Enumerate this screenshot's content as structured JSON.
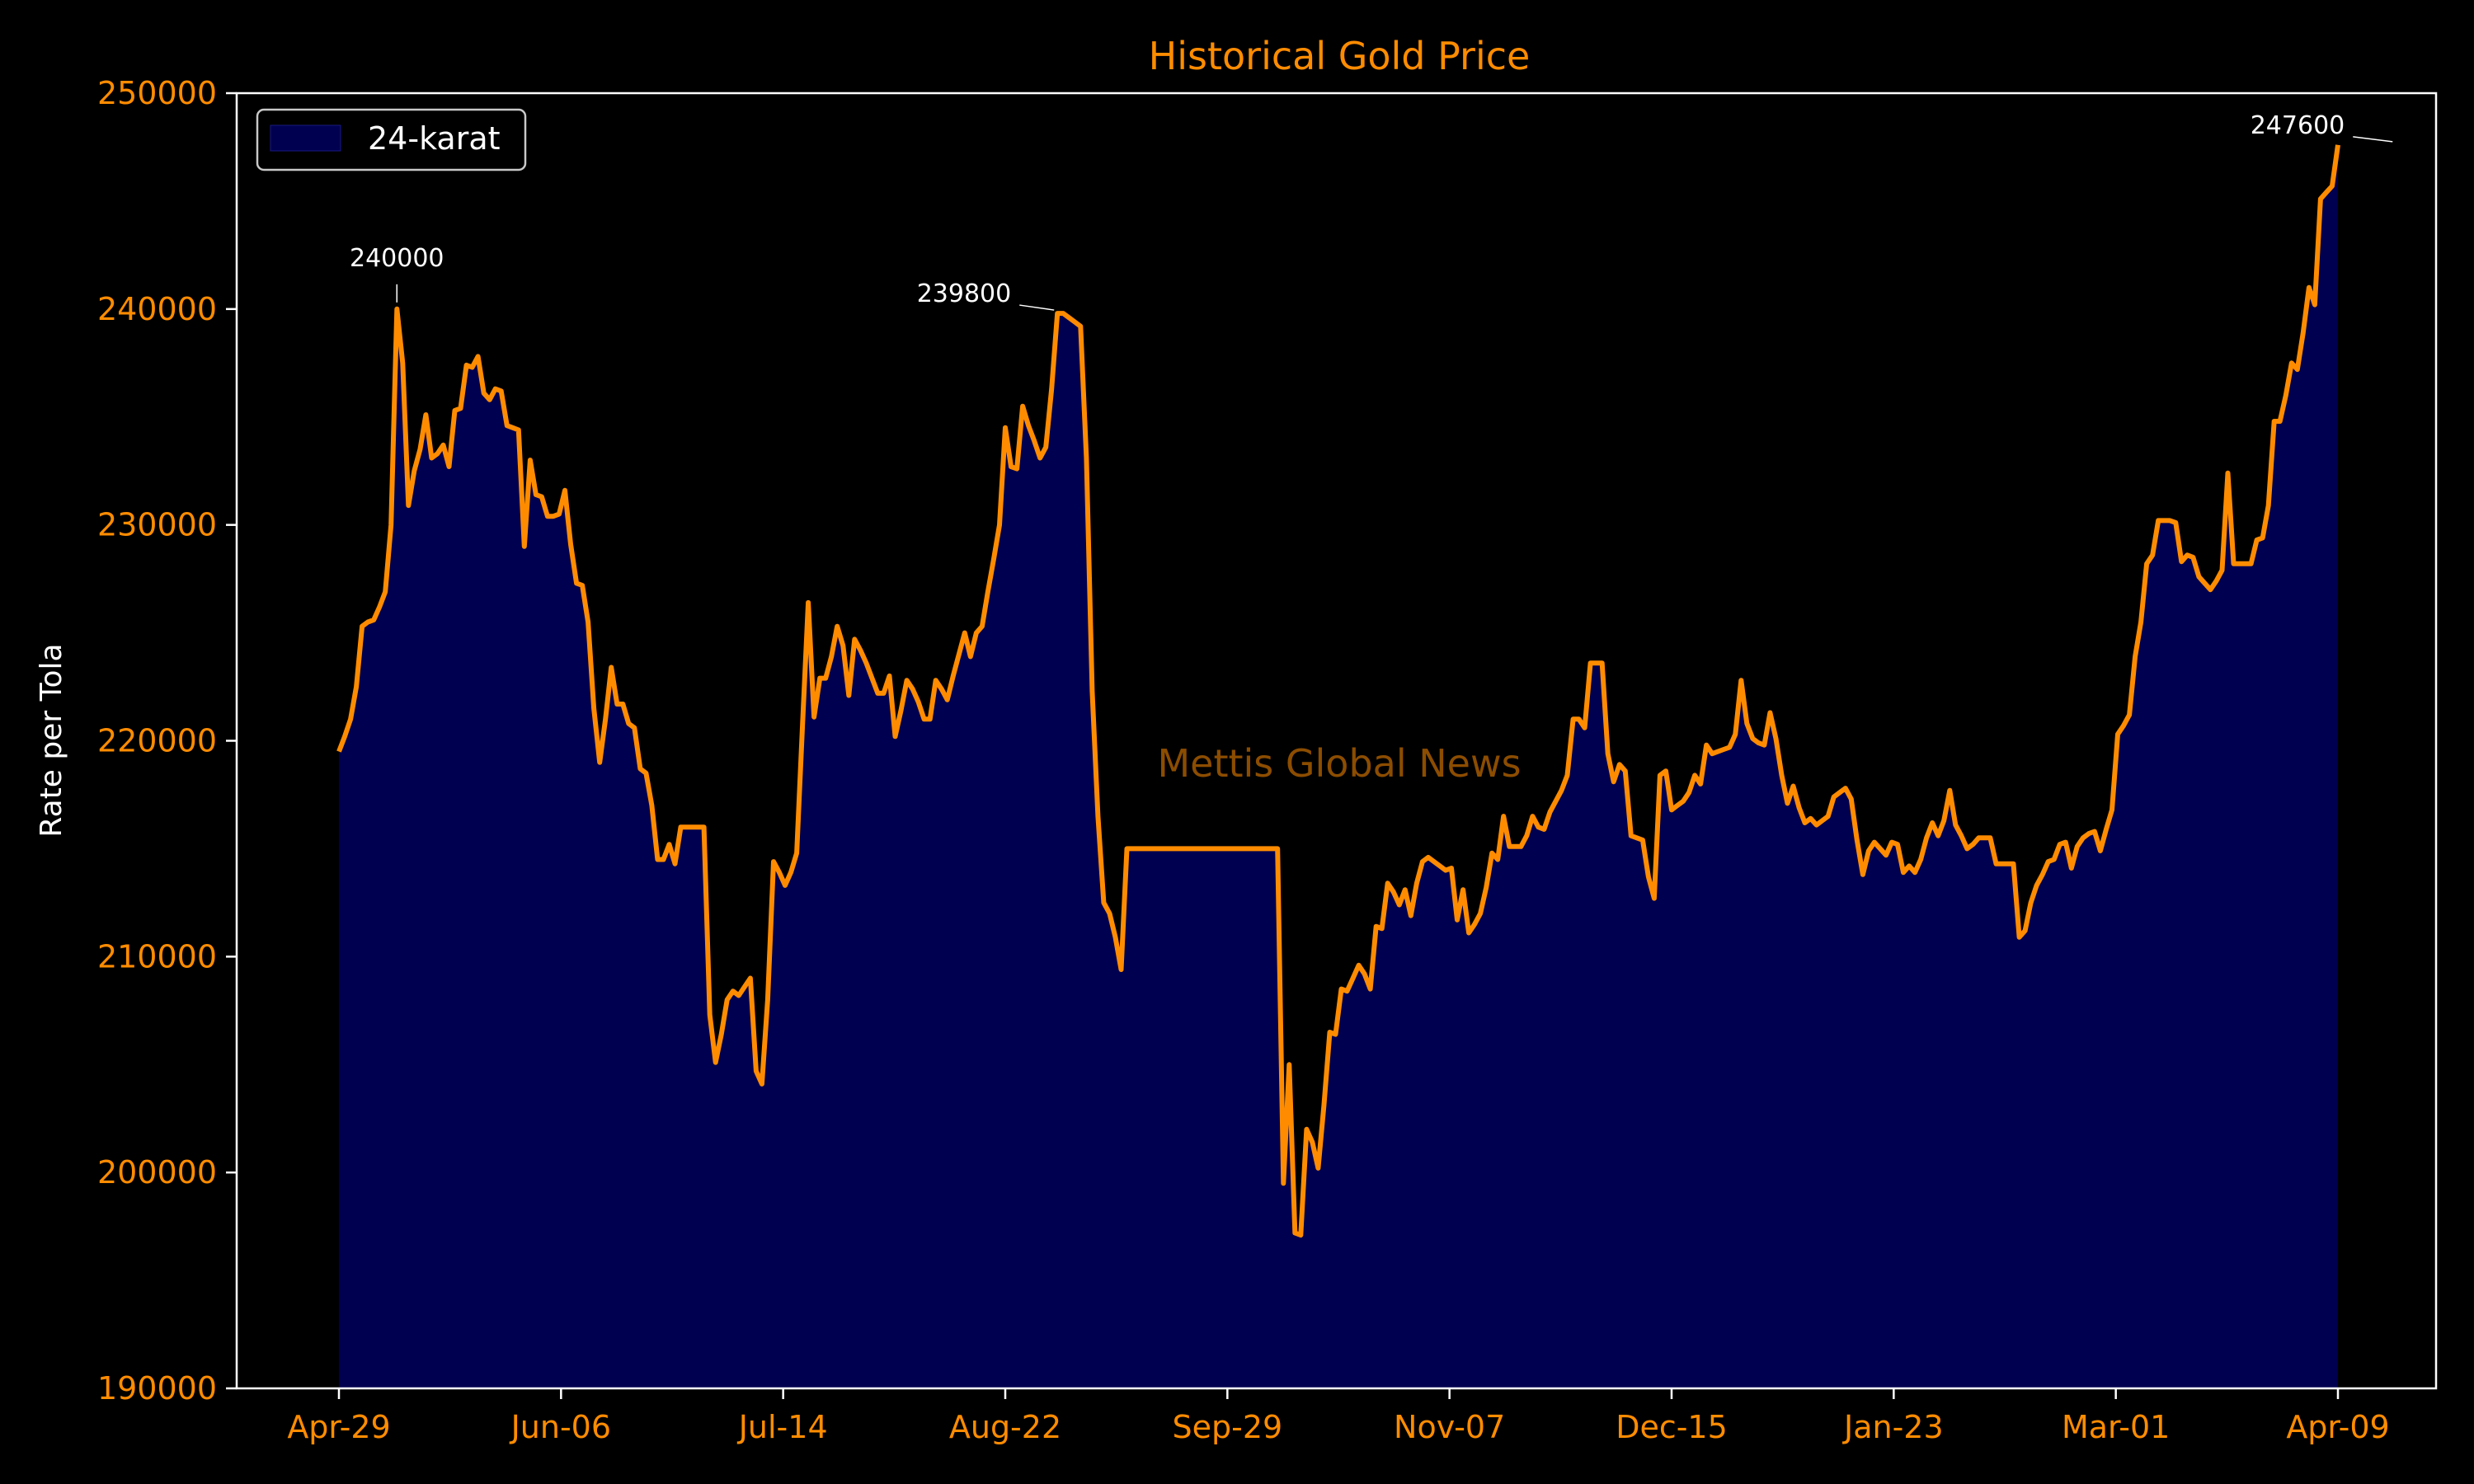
{
  "chart_data": {
    "type": "area",
    "title": "Historical Gold Price",
    "xlabel": "",
    "ylabel": "Rate per Tola",
    "ylim": [
      190000,
      250000
    ],
    "yticks": [
      190000,
      200000,
      210000,
      220000,
      230000,
      240000,
      250000
    ],
    "x_tick_labels": [
      "Apr-29",
      "Jun-06",
      "Jul-14",
      "Aug-22",
      "Sep-29",
      "Nov-07",
      "Dec-15",
      "Jan-23",
      "Mar-01",
      "Apr-09"
    ],
    "legend": {
      "label": "24-karat",
      "position": "top-left"
    },
    "grid": false,
    "series": [
      {
        "name": "24-karat",
        "line_color": "#ff8c00",
        "fill_color": "#000050",
        "values": [
          219500,
          220200,
          221000,
          222500,
          225300,
          225500,
          225600,
          226200,
          226900,
          230000,
          240000,
          237500,
          230900,
          232500,
          233500,
          235100,
          233100,
          233300,
          233700,
          232700,
          235300,
          235400,
          237400,
          237300,
          237800,
          236100,
          235800,
          236300,
          236200,
          234600,
          234500,
          234400,
          229000,
          233000,
          231400,
          231300,
          230400,
          230400,
          230500,
          231600,
          229100,
          227300,
          227200,
          225500,
          221500,
          219000,
          221000,
          223400,
          221700,
          221700,
          220800,
          220600,
          218700,
          218500,
          217000,
          214500,
          214500,
          215200,
          214300,
          216000,
          216000,
          216000,
          216000,
          216000,
          207300,
          205100,
          206400,
          208000,
          208400,
          208200,
          208600,
          209000,
          204700,
          204100,
          208000,
          214400,
          213900,
          213300,
          213900,
          214800,
          220700,
          226400,
          221100,
          222900,
          222900,
          223900,
          225300,
          224400,
          222100,
          224700,
          224200,
          223600,
          222900,
          222200,
          222200,
          223000,
          220200,
          221400,
          222800,
          222400,
          221800,
          221000,
          221000,
          222800,
          222400,
          221900,
          223000,
          224000,
          225000,
          223900,
          225000,
          225300,
          226900,
          228400,
          230000,
          234500,
          232700,
          232600,
          235500,
          234600,
          233900,
          233100,
          233600,
          236300,
          239800,
          239800,
          239600,
          239400,
          239200,
          233100,
          222300,
          216500,
          212500,
          212000,
          210900,
          209400,
          215000,
          215000,
          215000,
          215000,
          215000,
          215000,
          215000,
          215000,
          215000,
          215000,
          215000,
          215000,
          215000,
          215000,
          215000,
          215000,
          215000,
          215000,
          215000,
          215000,
          215000,
          215000,
          215000,
          215000,
          215000,
          215000,
          215000,
          199500,
          205000,
          197200,
          197100,
          202000,
          201400,
          200200,
          203100,
          206500,
          206400,
          208500,
          208400,
          209000,
          209600,
          209200,
          208500,
          211400,
          211300,
          213400,
          213000,
          212400,
          213100,
          211900,
          213400,
          214400,
          214600,
          214400,
          214200,
          214000,
          214100,
          211700,
          213100,
          211100,
          211500,
          212000,
          213200,
          214800,
          214500,
          216500,
          215100,
          215100,
          215100,
          215600,
          216500,
          216000,
          215900,
          216700,
          217200,
          217700,
          218400,
          221000,
          221000,
          220600,
          223600,
          223600,
          223600,
          219400,
          218100,
          218900,
          218600,
          215600,
          215500,
          215400,
          213700,
          212700,
          218400,
          218600,
          216800,
          217000,
          217200,
          217600,
          218400,
          218000,
          219800,
          219400,
          219500,
          219600,
          219700,
          220300,
          222800,
          220800,
          220100,
          219900,
          219800,
          221300,
          220100,
          218400,
          217100,
          217900,
          216900,
          216200,
          216400,
          216100,
          216300,
          216500,
          217400,
          217600,
          217800,
          217300,
          215400,
          213800,
          214900,
          215300,
          215000,
          214700,
          215300,
          215200,
          213900,
          214200,
          213900,
          214500,
          215500,
          216200,
          215600,
          216300,
          217700,
          216100,
          215600,
          215000,
          215200,
          215500,
          215500,
          215500,
          214300,
          214300,
          214300,
          214300,
          210900,
          211200,
          212500,
          213300,
          213800,
          214400,
          214500,
          215200,
          215300,
          214100,
          215100,
          215500,
          215700,
          215800,
          214900,
          215900,
          216800,
          220300,
          220700,
          221200,
          223900,
          225500,
          228200,
          228600,
          230200,
          230200,
          230200,
          230100,
          228300,
          228600,
          228500,
          227600,
          227300,
          227000,
          227400,
          227900,
          232400,
          228200,
          228200,
          228200,
          228200,
          229300,
          229400,
          230900,
          234800,
          234800,
          236000,
          237500,
          237200,
          238900,
          241000,
          240200,
          245100,
          245400,
          245700,
          247600
        ]
      }
    ],
    "annotations": [
      {
        "text": "240000",
        "index": 10,
        "value": 240000
      },
      {
        "text": "239800",
        "index": 124,
        "value": 239800
      },
      {
        "text": "247600",
        "index": 355,
        "value": 247600
      }
    ],
    "watermark": "Mettis Global News"
  },
  "colors": {
    "background": "#000000",
    "axes_frame": "#ffffff",
    "accent": "#ff8c00",
    "fill": "#000050"
  }
}
